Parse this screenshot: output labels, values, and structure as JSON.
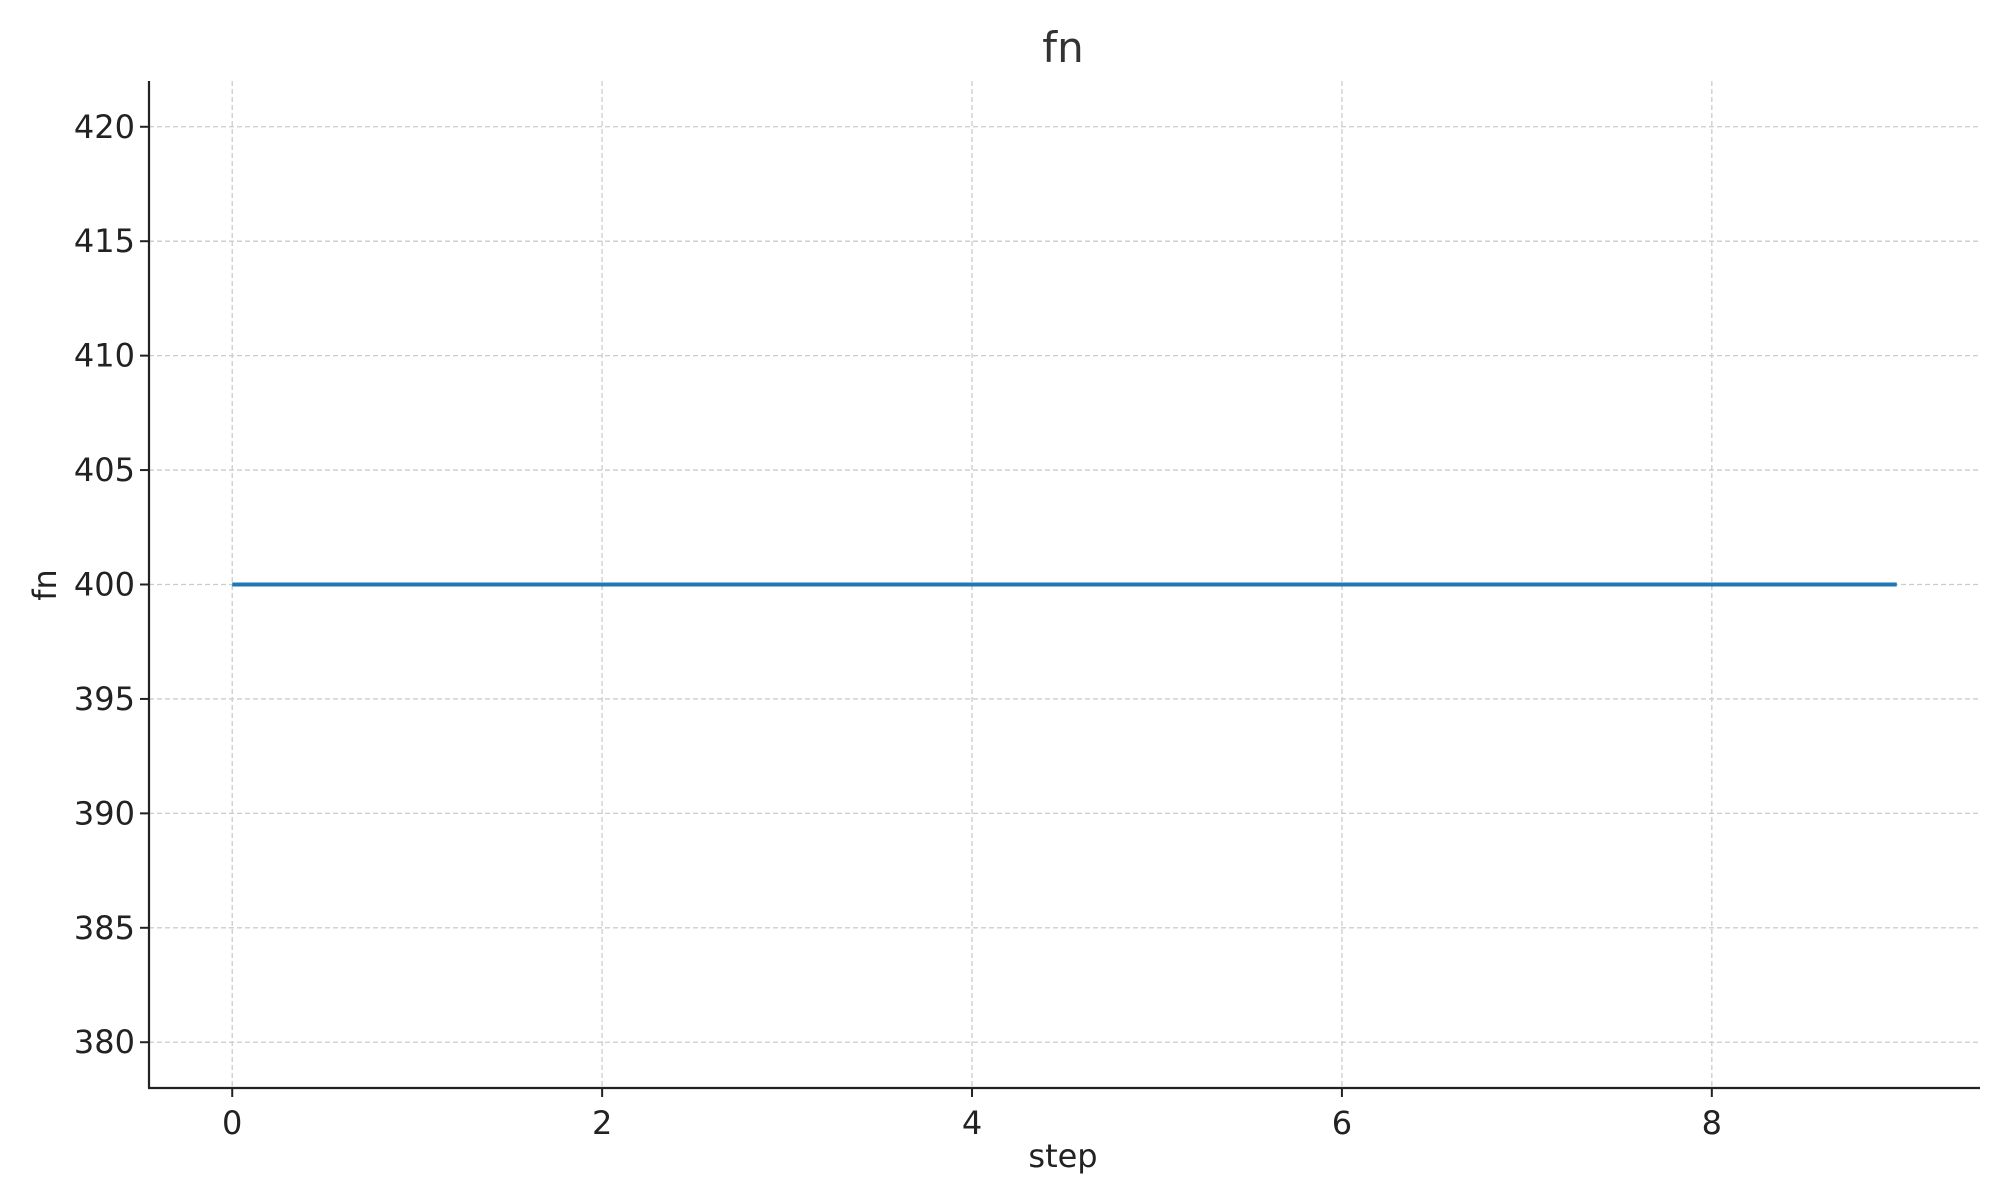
{
  "chart_data": {
    "type": "line",
    "title": "fn",
    "xlabel": "step",
    "ylabel": "fn",
    "x": [
      0,
      1,
      2,
      3,
      4,
      5,
      6,
      7,
      8,
      9
    ],
    "series": [
      {
        "values": [
          400,
          400,
          400,
          400,
          400,
          400,
          400,
          400,
          400,
          400
        ],
        "color": "#1f77b4"
      }
    ],
    "xlim": [
      -0.45,
      9.45
    ],
    "ylim": [
      378,
      422
    ],
    "xticks": [
      0,
      2,
      4,
      6,
      8
    ],
    "yticks": [
      380,
      385,
      390,
      395,
      400,
      405,
      410,
      415,
      420
    ],
    "grid": true,
    "grid_color": "#cccccc",
    "axis_color": "#222222"
  }
}
